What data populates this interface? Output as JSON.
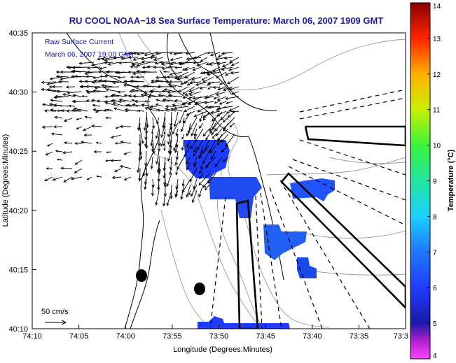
{
  "chart_data": {
    "type": "heatmap",
    "title": "RU COOL  NOAA−18  Sea Surface Temperature:  March 06, 2007 1909 GMT",
    "xlabel": "Longitude (Degrees:Minutes)",
    "ylabel": "Latitude (Degrees:Minutes)",
    "x_ticks": [
      "74:10",
      "74:05",
      "74:00",
      "73:55",
      "73:50",
      "73:45",
      "73:40",
      "73:35",
      "73:3"
    ],
    "y_ticks": [
      "40:10",
      "40:15",
      "40:20",
      "40:25",
      "40:30",
      "40:35"
    ],
    "xlim": [
      -74.1667,
      -73.5
    ],
    "ylim": [
      40.1667,
      40.5833
    ],
    "annotations": [
      "Raw Surface Current",
      "March 06, 2007 19:00 GMT"
    ],
    "vector_scale_label": "50 cm/s",
    "colorbar": {
      "label": "Temperature (°C)",
      "range": [
        4,
        14
      ],
      "ticks": [
        "4",
        "5",
        "6",
        "7",
        "8",
        "9",
        "10",
        "11",
        "12",
        "13",
        "14"
      ],
      "colormap": "jet-like"
    },
    "sst_patches_temperature_c": 5.0,
    "grid": false
  }
}
